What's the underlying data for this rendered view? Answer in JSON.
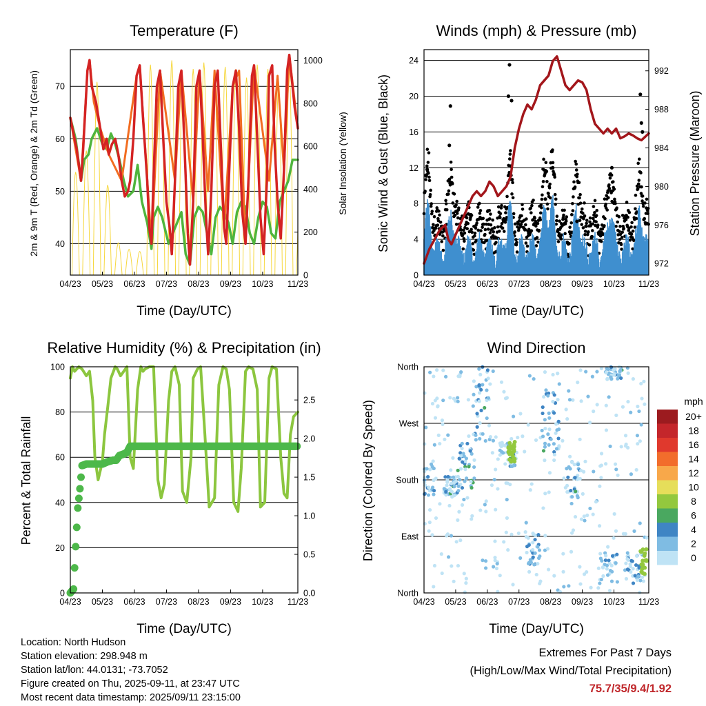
{
  "chart_data": [
    {
      "type": "line",
      "title": "Temperature (F)",
      "xlabel": "Time (Day/UTC)",
      "ylabel": "2m & 9m T (Red, Orange) & 2m Td (Green)",
      "ylabel_right": "Solar Insolation (Yellow)",
      "x_ticks": [
        "04/23",
        "05/23",
        "06/23",
        "07/23",
        "08/23",
        "09/23",
        "10/23",
        "11/23"
      ],
      "y_ticks": [
        40,
        50,
        60,
        70
      ],
      "y_ticks_right": [
        0,
        200,
        400,
        600,
        800,
        1000
      ],
      "ylim": [
        34,
        77
      ],
      "ylim_right": [
        0,
        1050
      ],
      "grid": true,
      "series": [
        {
          "color": "#d42323",
          "x": [
            0,
            0.3,
            0.6,
            1,
            1.2,
            1.6,
            1.8,
            2,
            2.4,
            2.8,
            3.1,
            3.4,
            3.6,
            3.9,
            4.2,
            4.5,
            4.8,
            5.1,
            5.4,
            5.6,
            5.9,
            6.2,
            6.5,
            6.8,
            7,
            7.2,
            7.4,
            7.6,
            7.8,
            8.1,
            8.4,
            8.7,
            9,
            9.3,
            9.5,
            9.8,
            10.1,
            10.4,
            10.7,
            11,
            11.2,
            11.5,
            11.8,
            12.1,
            12.4,
            12.7,
            12.9,
            13.2,
            13.5,
            13.8,
            14.1,
            14.4,
            14.6,
            14.9,
            15.2,
            15.5,
            15.8,
            16.1,
            16.4,
            16.7,
            17,
            17.2,
            17.5,
            17.8,
            18.1,
            18.4,
            18.6,
            18.9,
            19.1,
            19.4,
            19.7,
            20,
            20.3,
            20.5,
            20.8,
            21,
            21.3
          ],
          "values": [
            64,
            61,
            58,
            52,
            58,
            73,
            75,
            70,
            67,
            62,
            58,
            60,
            57,
            59,
            60,
            57,
            52,
            49,
            50,
            52,
            60,
            72,
            74,
            64,
            58,
            52,
            43,
            40,
            53,
            70,
            73,
            60,
            48,
            43,
            38,
            52,
            70,
            73,
            58,
            42,
            36,
            48,
            70,
            73,
            60,
            45,
            38,
            50,
            70,
            73,
            58,
            43,
            40,
            55,
            70,
            73,
            62,
            46,
            40,
            53,
            72,
            74,
            60,
            45,
            38,
            52,
            72,
            74,
            60,
            48,
            41,
            54,
            73,
            76,
            70,
            66,
            62
          ]
        },
        {
          "color": "#f26d21",
          "x": [
            0,
            1,
            1.6,
            1.8,
            2.2,
            2.8,
            3.6,
            4.8,
            6.2,
            6.5,
            7.6,
            8.4,
            9.8,
            10.4,
            11.5,
            12.1,
            12.9,
            13.5,
            14.4,
            15.2,
            15.8,
            16.4,
            17.2,
            18.6,
            19.4,
            20,
            20.5,
            21.3
          ],
          "values": [
            64,
            52,
            73,
            75,
            67,
            62,
            57,
            52,
            72,
            74,
            40,
            73,
            52,
            73,
            48,
            73,
            50,
            73,
            43,
            70,
            73,
            40,
            74,
            52,
            72,
            54,
            76,
            62
          ]
        },
        {
          "color": "#4fb53d",
          "x": [
            0,
            0.5,
            1,
            1.3,
            1.7,
            2,
            2.5,
            3,
            3.4,
            3.8,
            4.2,
            4.6,
            5,
            5.4,
            5.9,
            6.3,
            6.7,
            7.2,
            7.6,
            7.8,
            8.2,
            8.6,
            9.2,
            9.6,
            10,
            10.4,
            10.8,
            11.2,
            11.6,
            12,
            12.4,
            12.8,
            13.2,
            13.6,
            14,
            14.4,
            14.8,
            15.2,
            15.6,
            16,
            16.4,
            16.8,
            17.2,
            17.6,
            18,
            18.4,
            18.8,
            19.2,
            19.6,
            20,
            20.4,
            20.8,
            21.3
          ],
          "values": [
            64,
            60,
            52,
            56,
            57,
            60,
            62,
            59,
            58,
            61,
            59,
            56,
            52,
            49,
            50,
            55,
            48,
            44,
            39,
            45,
            47,
            45,
            40,
            42,
            44,
            46,
            38,
            36,
            45,
            47,
            46,
            42,
            38,
            45,
            47,
            46,
            44,
            40,
            46,
            48,
            47,
            42,
            40,
            45,
            48,
            47,
            42,
            41,
            48,
            50,
            52,
            56,
            56
          ]
        }
      ],
      "insolation": {
        "color": "#f5d327",
        "days": [
          0,
          1,
          2,
          3,
          4,
          5,
          6,
          7,
          8,
          9,
          10,
          11,
          12,
          13,
          14,
          15,
          16,
          17,
          18,
          19,
          20,
          21
        ],
        "peaks": [
          480,
          580,
          900,
          420,
          150,
          120,
          110,
          980,
          940,
          1000,
          880,
          960,
          990,
          950,
          970,
          960,
          920,
          980,
          960,
          900,
          950,
          300
        ]
      }
    },
    {
      "type": "scatter",
      "title": "Winds (mph) & Pressure (mb)",
      "xlabel": "Time (Day/UTC)",
      "ylabel": "Sonic Wind & Gust (Blue, Black)",
      "ylabel_right": "Station Pressure (Maroon)",
      "x_ticks": [
        "04/23",
        "05/23",
        "06/23",
        "07/23",
        "08/23",
        "09/23",
        "10/23",
        "11/23"
      ],
      "y_ticks": [
        0,
        4,
        8,
        12,
        16,
        20,
        24
      ],
      "y_ticks_right": [
        972,
        976,
        980,
        984,
        988,
        992
      ],
      "ylim": [
        0,
        25.2
      ],
      "ylim_right": [
        970.8,
        994.2
      ],
      "grid": true,
      "gust_peaks": [
        {
          "x": 0.3,
          "y": 11.8
        },
        {
          "x": 2.5,
          "y": 18.9
        },
        {
          "x": 2.4,
          "y": 14.5
        },
        {
          "x": 8.1,
          "y": 23.5
        },
        {
          "x": 8.0,
          "y": 20.0
        },
        {
          "x": 8.3,
          "y": 19.5
        },
        {
          "x": 11.5,
          "y": 8.5
        },
        {
          "x": 12.2,
          "y": 12.0
        },
        {
          "x": 14.5,
          "y": 6.0
        },
        {
          "x": 17.8,
          "y": 12.0
        },
        {
          "x": 20.5,
          "y": 20.2
        },
        {
          "x": 20.6,
          "y": 17.0
        },
        {
          "x": 20.7,
          "y": 16.0
        }
      ],
      "pressure": {
        "color": "#a3161b",
        "x": [
          0,
          0.5,
          1,
          1.5,
          2,
          2.3,
          2.6,
          3,
          3.4,
          3.8,
          4.2,
          4.6,
          5,
          5.4,
          5.8,
          6.2,
          6.6,
          7,
          7.4,
          7.8,
          8.2,
          8.6,
          9,
          9.4,
          9.8,
          10.2,
          10.6,
          11,
          11.4,
          11.8,
          12.2,
          12.6,
          13,
          13.4,
          13.8,
          14.2,
          14.6,
          15,
          15.4,
          15.8,
          16.2,
          16.6,
          17,
          17.4,
          17.8,
          18.2,
          18.6,
          19,
          19.4,
          19.8,
          20.2,
          20.6,
          21,
          21.3
        ],
        "values": [
          972,
          973.5,
          974.5,
          975.5,
          976,
          974.5,
          974,
          975,
          976,
          977,
          978,
          979,
          979.5,
          979,
          979.5,
          980.5,
          980,
          979,
          979.5,
          980,
          981,
          984,
          986,
          987.5,
          988.5,
          988,
          989,
          990.5,
          991,
          991.5,
          993,
          993.5,
          992,
          990.5,
          990,
          990.5,
          991,
          990.8,
          990,
          988,
          986.5,
          986,
          985.5,
          986,
          985.5,
          986,
          985,
          985.2,
          985.5,
          985.3,
          985,
          984.8,
          985.2,
          985.5
        ]
      },
      "wind": {
        "color": "#3f8fcf",
        "days_high": [
          0.4,
          2.6,
          8.1,
          11.5,
          12.2,
          14.5,
          17.7,
          20.5
        ],
        "base": 1.5
      }
    },
    {
      "type": "line",
      "title": "Relative Humidity (%) & Precipitation (in)",
      "xlabel": "Time (Day/UTC)",
      "ylabel": "Percent & Total Rainfall",
      "x_ticks": [
        "04/23",
        "05/23",
        "06/23",
        "07/23",
        "08/23",
        "09/23",
        "10/23",
        "11/23"
      ],
      "y_ticks": [
        0,
        20,
        40,
        60,
        80,
        100
      ],
      "y_ticks_right": [
        "0.0",
        "0.5",
        "1.0",
        "1.5",
        "2.0",
        "2.5"
      ],
      "ylim": [
        0,
        100
      ],
      "ylim_right": [
        0,
        2.93
      ],
      "grid": true,
      "series": [
        {
          "name": "rh",
          "color": "#8cc63f",
          "x": [
            0,
            0.2,
            0.4,
            0.8,
            1.1,
            1.5,
            1.8,
            2.1,
            2.3,
            2.6,
            3,
            3.2,
            3.5,
            3.8,
            4.2,
            4.4,
            4.7,
            5.0,
            5.3,
            5.6,
            5.9,
            6.3,
            6.6,
            6.8,
            7,
            7.4,
            7.8,
            8.2,
            8.5,
            8.8,
            9.2,
            9.5,
            9.8,
            10.2,
            10.5,
            10.9,
            11.3,
            11.5,
            11.9,
            12.2,
            12.6,
            13,
            13.5,
            13.9,
            14.3,
            14.6,
            14.9,
            15.3,
            15.7,
            16,
            16.4,
            16.7,
            17.1,
            17.5,
            17.8,
            18.2,
            18.6,
            18.9,
            19.3,
            19.7,
            20,
            20.3,
            20.6,
            20.9,
            21.3
          ],
          "values": [
            95,
            100,
            98,
            100,
            99,
            96,
            98,
            85,
            60,
            50,
            58,
            70,
            82,
            95,
            100,
            99,
            96,
            98,
            100,
            60,
            55,
            90,
            100,
            98,
            99,
            100,
            100,
            50,
            42,
            48,
            85,
            98,
            100,
            92,
            45,
            40,
            60,
            95,
            99,
            100,
            70,
            38,
            42,
            92,
            100,
            99,
            90,
            40,
            36,
            55,
            98,
            100,
            99,
            90,
            38,
            40,
            95,
            100,
            99,
            60,
            44,
            42,
            70,
            78,
            80
          ]
        },
        {
          "name": "rain",
          "color": "#4db84a",
          "x": [
            0,
            0.3,
            0.5,
            0.7,
            0.9,
            1.1,
            1.5,
            2,
            2.5,
            3,
            3.5,
            4,
            4.3,
            4.6,
            5,
            5.3,
            5.6,
            6,
            6.5,
            7,
            8,
            10,
            12,
            14,
            16,
            18,
            20,
            21.3
          ],
          "values": [
            0,
            0.05,
            0.6,
            1.1,
            1.35,
            1.65,
            1.67,
            1.67,
            1.67,
            1.67,
            1.7,
            1.72,
            1.72,
            1.78,
            1.8,
            1.82,
            1.9,
            1.9,
            1.9,
            1.9,
            1.9,
            1.9,
            1.9,
            1.9,
            1.9,
            1.9,
            1.9,
            1.9
          ]
        }
      ]
    },
    {
      "type": "scatter",
      "title": "Wind Direction",
      "xlabel": "Time (Day/UTC)",
      "ylabel": "Direction (Colored By Speed)",
      "x_ticks": [
        "04/23",
        "05/23",
        "06/23",
        "07/23",
        "08/23",
        "09/23",
        "10/23",
        "11/23"
      ],
      "y_ticks": [
        "North",
        "East",
        "South",
        "West",
        "North"
      ],
      "ylim": [
        0,
        360
      ],
      "grid": true,
      "legend": {
        "title": "mph",
        "labels": [
          "20+",
          "18",
          "16",
          "14",
          "12",
          "10",
          "8",
          "6",
          "4",
          "2",
          "0"
        ],
        "colors": [
          "#9c1b1f",
          "#c4262b",
          "#e0392d",
          "#f26d2c",
          "#f8a84a",
          "#e6de5a",
          "#93c83e",
          "#4aa860",
          "#3f85c4",
          "#7fbce3",
          "#bfe3f5"
        ]
      }
    }
  ],
  "info": {
    "location": "Location: North Hudson",
    "elevation": "Station elevation: 298.948 m",
    "latlon": "Station lat/lon: 44.0131; -73.7052",
    "created": "Figure created on Thu, 2025-09-11, at 23:47 UTC",
    "recent": "Most recent data timestamp: 2025/09/11 23:15:00"
  },
  "extremes": {
    "title": "Extremes For Past 7 Days",
    "subtitle": "(High/Low/Max Wind/Total Precipitation)",
    "value": "75.7/35/9.4/1.92"
  }
}
